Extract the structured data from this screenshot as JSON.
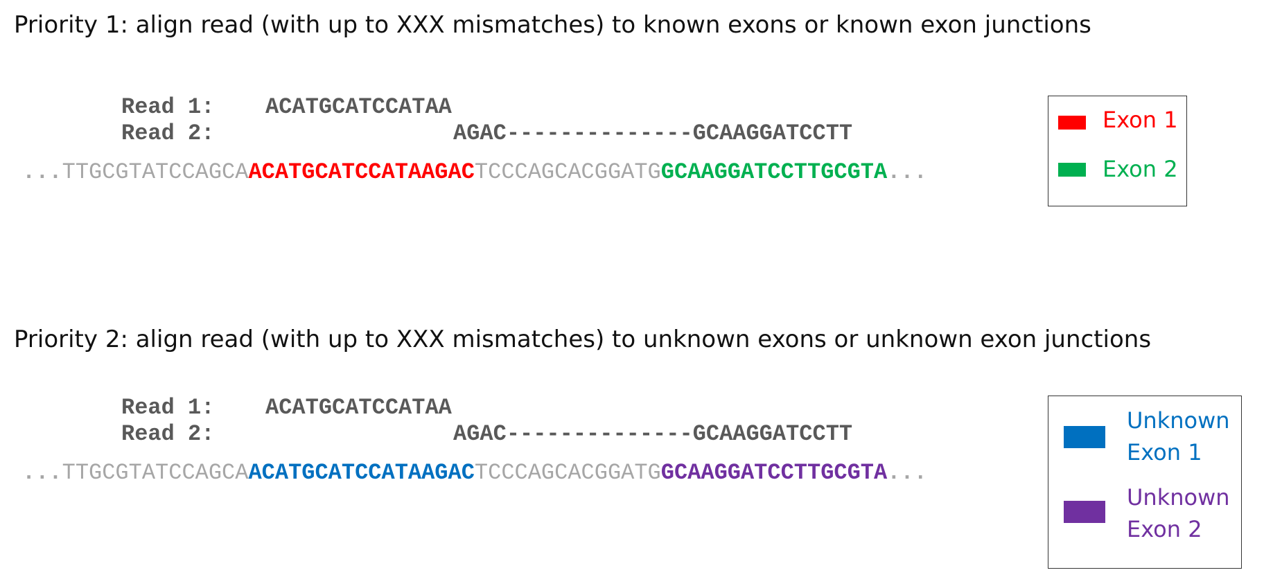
{
  "section1": {
    "heading": "Priority 1: align read (with up to XXX mismatches) to known exons or known exon junctions",
    "read1_label": "Read 1:",
    "read1_seq": "ACATGCATCCATAA",
    "read2_label": "Read 2:",
    "read2_seq_a": "AGAC",
    "read2_gap": "--------------",
    "read2_seq_b": "GCAAGGATCCTT",
    "reference": {
      "lead_dots": "...",
      "flank_left": "TTGCGTATCCAGCA",
      "exon_a": "ACATGCATCCATAAGAC",
      "intron": "TCCCAGCACGGATG",
      "exon_b": "GCAAGGATCCTTGCGTA",
      "trail_dots": "..."
    },
    "legend": [
      {
        "label": "Exon 1",
        "color": "#ff0000"
      },
      {
        "label": "Exon 2",
        "color": "#00b050"
      }
    ]
  },
  "section2": {
    "heading": "Priority 2: align read (with up to XXX mismatches) to unknown exons or unknown exon junctions",
    "read1_label": "Read 1:",
    "read1_seq": "ACATGCATCCATAA",
    "read2_label": "Read 2:",
    "read2_seq_a": "AGAC",
    "read2_gap": "--------------",
    "read2_seq_b": "GCAAGGATCCTT",
    "reference": {
      "lead_dots": "...",
      "flank_left": "TTGCGTATCCAGCA",
      "exon_a": "ACATGCATCCATAAGAC",
      "intron": "TCCCAGCACGGATG",
      "exon_b": "GCAAGGATCCTTGCGTA",
      "trail_dots": "..."
    },
    "legend": [
      {
        "label_line1": "Unknown",
        "label_line2": "Exon 1",
        "color": "#0070c0"
      },
      {
        "label_line1": "Unknown",
        "label_line2": "Exon 2",
        "color": "#7030a0"
      }
    ]
  }
}
